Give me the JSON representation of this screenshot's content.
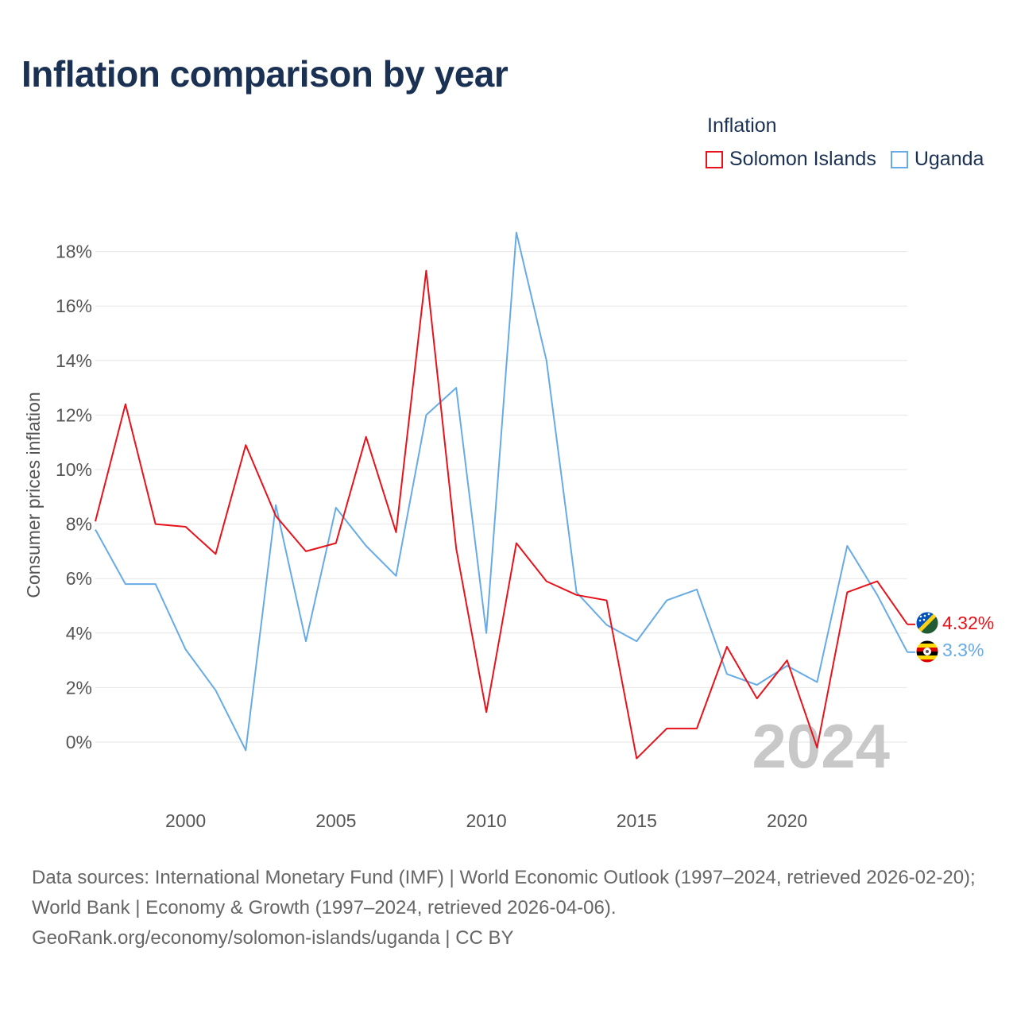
{
  "title": "Inflation comparison by year",
  "legend": {
    "title": "Inflation",
    "items": [
      {
        "label": "Solomon Islands",
        "color": "#e8121b"
      },
      {
        "label": "Uganda",
        "color": "#67abe6"
      }
    ]
  },
  "footer": {
    "sources": "Data sources: International Monetary Fund (IMF) | World Economic Outlook (1997–2024, retrieved 2026-02-20); World Bank | Economy & Growth (1997–2024, retrieved 2026-04-06).",
    "credit": "GeoRank.org/economy/solomon-islands/uganda | CC BY"
  },
  "chart_data": {
    "type": "line",
    "title": "Inflation comparison by year",
    "ylabel": "Consumer prices inflation",
    "xlabel": "",
    "x": [
      1997,
      1998,
      1999,
      2000,
      2001,
      2002,
      2003,
      2004,
      2005,
      2006,
      2007,
      2008,
      2009,
      2010,
      2011,
      2012,
      2013,
      2014,
      2015,
      2016,
      2017,
      2018,
      2019,
      2020,
      2021,
      2022,
      2023,
      2024
    ],
    "xlim": [
      1997,
      2024
    ],
    "ylim": [
      -2,
      19
    ],
    "yticks": [
      0,
      2,
      4,
      6,
      8,
      10,
      12,
      14,
      16,
      18
    ],
    "ytick_labels": [
      "0%",
      "2%",
      "4%",
      "6%",
      "8%",
      "10%",
      "12%",
      "14%",
      "16%",
      "18%"
    ],
    "xticks": [
      2000,
      2005,
      2010,
      2015,
      2020
    ],
    "xtick_labels": [
      "2000",
      "2005",
      "2010",
      "2015",
      "2020"
    ],
    "year_label": "2024",
    "series": [
      {
        "name": "Solomon Islands",
        "color": "#e8121b",
        "end_label": "4.32%",
        "flag": "solomon-islands-flag-icon",
        "values": [
          8.1,
          12.4,
          8.0,
          7.9,
          6.9,
          10.9,
          8.3,
          7.0,
          7.3,
          11.2,
          7.7,
          17.3,
          7.1,
          1.1,
          7.3,
          5.9,
          5.4,
          5.2,
          -0.6,
          0.5,
          0.5,
          3.5,
          1.6,
          3.0,
          -0.2,
          5.5,
          5.9,
          4.32
        ]
      },
      {
        "name": "Uganda",
        "color": "#67abe6",
        "end_label": "3.3%",
        "flag": "uganda-flag-icon",
        "values": [
          7.8,
          5.8,
          5.8,
          3.4,
          1.9,
          -0.3,
          8.7,
          3.7,
          8.6,
          7.2,
          6.1,
          12.0,
          13.0,
          4.0,
          18.7,
          14.0,
          5.5,
          4.3,
          3.7,
          5.2,
          5.6,
          2.5,
          2.1,
          2.8,
          2.2,
          7.2,
          5.4,
          3.3
        ]
      }
    ]
  }
}
